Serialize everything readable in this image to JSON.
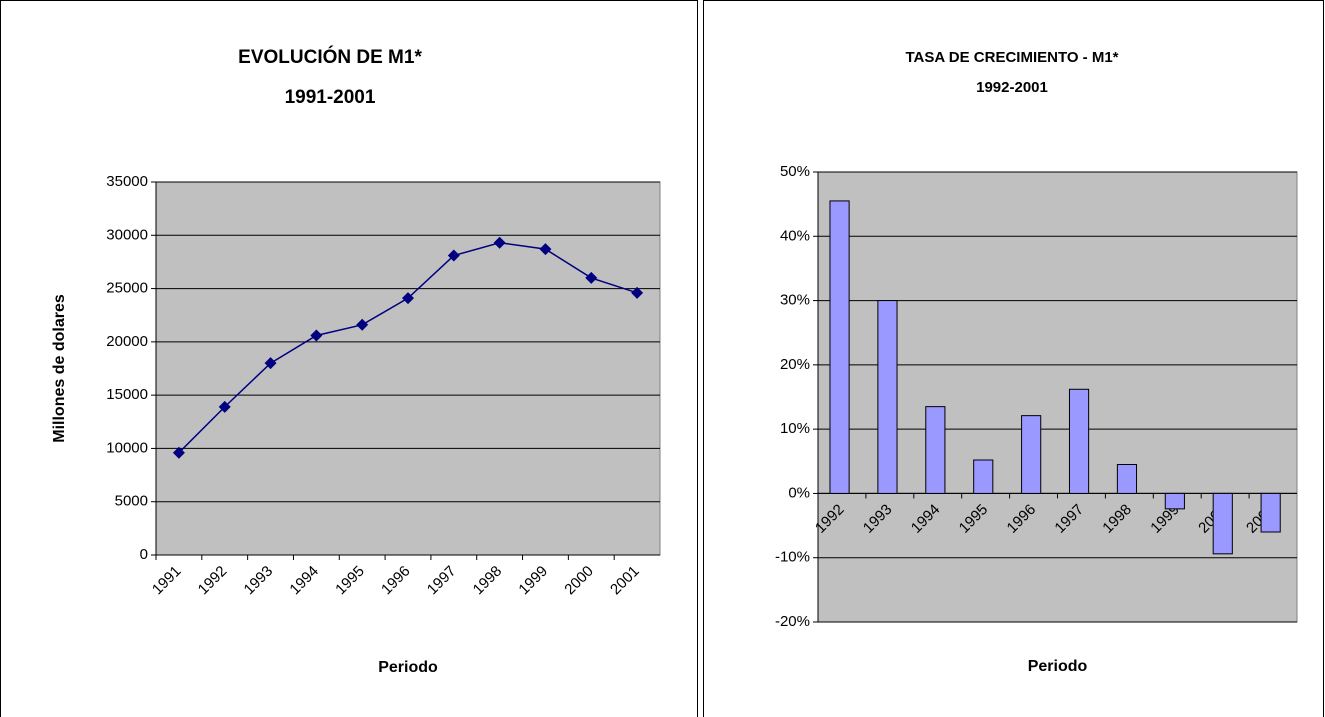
{
  "chart_data": [
    {
      "type": "line",
      "title": "EVOLUCIÓN DE M1*",
      "subtitle": "1991-2001",
      "x_label": "Periodo",
      "y_label": "Millones de dolares",
      "categories": [
        "1991",
        "1992",
        "1993",
        "1994",
        "1995",
        "1996",
        "1997",
        "1998",
        "1999",
        "2000",
        "2001"
      ],
      "values": [
        9600,
        13900,
        18000,
        20600,
        21600,
        24100,
        28100,
        29300,
        28700,
        26000,
        24600
      ],
      "color": "#000080",
      "ylim": [
        0,
        35000
      ],
      "yticks": [
        0,
        5000,
        10000,
        15000,
        20000,
        25000,
        30000,
        35000
      ],
      "grid": true
    },
    {
      "type": "bar",
      "title": "TASA DE CRECIMIENTO - M1*",
      "subtitle": "1992-2001",
      "x_label": "Periodo",
      "categories": [
        "1992",
        "1993",
        "1994",
        "1995",
        "1996",
        "1997",
        "1998",
        "1999",
        "2000",
        "2001"
      ],
      "values": [
        45.5,
        30,
        13.5,
        5.2,
        12.1,
        16.2,
        4.5,
        -2.4,
        -9.4,
        -6
      ],
      "color": "#9999ff",
      "ylim": [
        -20,
        50
      ],
      "yticks": [
        {
          "value": -20,
          "label": "-20%"
        },
        {
          "value": -10,
          "label": "-10%"
        },
        {
          "value": 0,
          "label": "0%"
        },
        {
          "value": 10,
          "label": "10%"
        },
        {
          "value": 20,
          "label": "20%"
        },
        {
          "value": 30,
          "label": "30%"
        },
        {
          "value": 40,
          "label": "40%"
        },
        {
          "value": 50,
          "label": "50%"
        }
      ],
      "grid": true
    }
  ]
}
